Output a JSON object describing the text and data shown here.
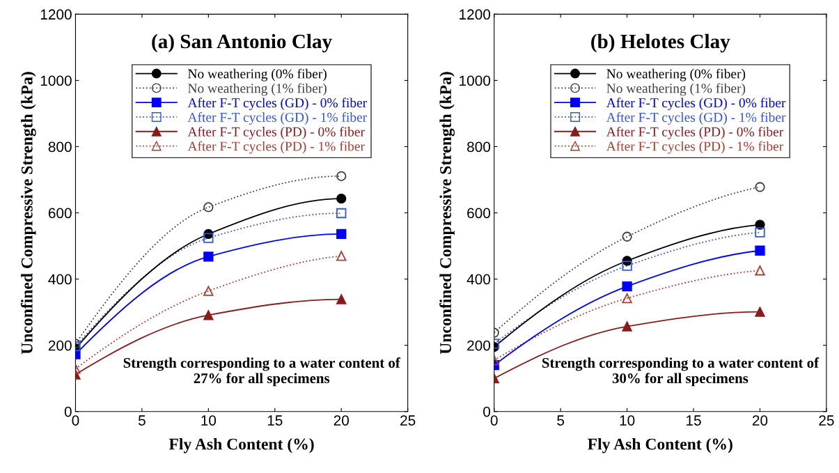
{
  "chart_data": [
    {
      "type": "line",
      "title": "(a) San Antonio Clay",
      "xlabel": "Fly Ash Content (%)",
      "ylabel": "Unconfined Compressive Strength (kPa)",
      "x": [
        0,
        10,
        20
      ],
      "xlim": [
        0,
        25
      ],
      "xticks": [
        0,
        5,
        10,
        15,
        20,
        25
      ],
      "ylim": [
        0,
        1200
      ],
      "yticks": [
        0,
        200,
        400,
        600,
        800,
        1000,
        1200
      ],
      "grid": false,
      "legend": "top",
      "annotations": [
        "Strength corresponding to a water content of 27% for all specimens"
      ],
      "series": [
        {
          "name": "No weathering (0% fiber)",
          "color": "#000000",
          "marker": "circle",
          "line_style": "solid",
          "values": [
            190,
            536,
            643
          ]
        },
        {
          "name": "No weathering (1% fiber)",
          "color": "#404040",
          "marker": "circle",
          "line_style": "dotted",
          "values": [
            205,
            617,
            711
          ]
        },
        {
          "name": "After F-T cycles (GD) - 0% fiber",
          "color": "#0000ff",
          "marker": "square",
          "line_style": "solid",
          "values": [
            173,
            468,
            536
          ]
        },
        {
          "name": "After F-T cycles (GD) - 1% fiber",
          "color": "#3355ee",
          "marker": "square",
          "line_style": "dotted",
          "values": [
            197,
            524,
            599
          ]
        },
        {
          "name": "After F-T cycles (PD) - 0% fiber",
          "color": "#8b1a1a",
          "marker": "triangle",
          "line_style": "solid",
          "values": [
            112,
            291,
            339
          ]
        },
        {
          "name": "After F-T cycles (PD) - 1% fiber",
          "color": "#b03a2e",
          "marker": "triangle",
          "line_style": "dotted",
          "values": [
            129,
            364,
            470
          ]
        }
      ]
    },
    {
      "type": "line",
      "title": "(b) Helotes Clay",
      "xlabel": "Fly Ash Content (%)",
      "ylabel": "Unconfined Compressive Strength (kPa)",
      "x": [
        0,
        10,
        20
      ],
      "xlim": [
        0,
        25
      ],
      "xticks": [
        0,
        5,
        10,
        15,
        20,
        25
      ],
      "ylim": [
        0,
        1200
      ],
      "yticks": [
        0,
        200,
        400,
        600,
        800,
        1000,
        1200
      ],
      "grid": false,
      "legend": "top",
      "annotations": [
        "Strength corresponding to a water content of 30% for all specimens"
      ],
      "series": [
        {
          "name": "No weathering (0% fiber)",
          "color": "#000000",
          "marker": "circle",
          "line_style": "solid",
          "values": [
            195,
            455,
            564
          ]
        },
        {
          "name": "No weathering (1% fiber)",
          "color": "#404040",
          "marker": "circle",
          "line_style": "dotted",
          "values": [
            238,
            528,
            678
          ]
        },
        {
          "name": "After F-T cycles (GD) - 0% fiber",
          "color": "#0000ff",
          "marker": "square",
          "line_style": "solid",
          "values": [
            140,
            378,
            486
          ]
        },
        {
          "name": "After F-T cycles (GD) - 1% fiber",
          "color": "#3355ee",
          "marker": "square",
          "line_style": "dotted",
          "values": [
            205,
            440,
            541
          ]
        },
        {
          "name": "After F-T cycles (PD) - 0% fiber",
          "color": "#8b1a1a",
          "marker": "triangle",
          "line_style": "solid",
          "values": [
            100,
            257,
            301
          ]
        },
        {
          "name": "After F-T cycles (PD) - 1% fiber",
          "color": "#b03a2e",
          "marker": "triangle",
          "line_style": "dotted",
          "values": [
            155,
            342,
            426
          ]
        }
      ]
    }
  ]
}
